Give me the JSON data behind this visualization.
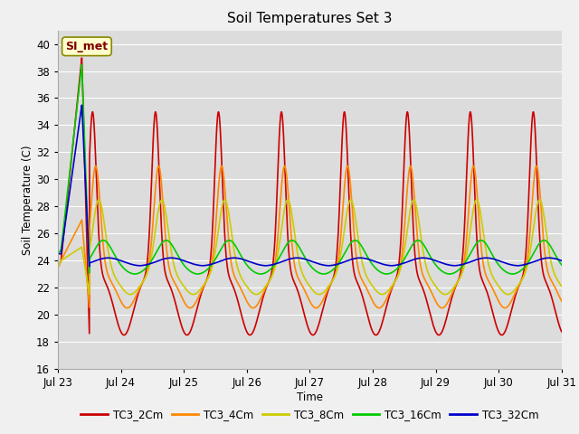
{
  "title": "Soil Temperatures Set 3",
  "xlabel": "Time",
  "ylabel": "Soil Temperature (C)",
  "ylim": [
    16,
    41
  ],
  "yticks": [
    16,
    18,
    20,
    22,
    24,
    26,
    28,
    30,
    32,
    34,
    36,
    38,
    40
  ],
  "xtick_positions": [
    0,
    1,
    2,
    3,
    4,
    5,
    6,
    7,
    8
  ],
  "xtick_labels": [
    "Jul 23",
    "Jul 24",
    "Jul 25",
    "Jul 26",
    "Jul 27",
    "Jul 28",
    "Jul 29",
    "Jul 30",
    "Jul 31"
  ],
  "series_colors": [
    "#cc0000",
    "#ff8800",
    "#cccc00",
    "#00cc00",
    "#0000cc"
  ],
  "series_labels": [
    "TC3_2Cm",
    "TC3_4Cm",
    "TC3_8Cm",
    "TC3_16Cm",
    "TC3_32Cm"
  ],
  "bg_color": "#dcdcdc",
  "fig_color": "#f0f0f0",
  "grid_color": "#ffffff",
  "annotation_text": "SI_met",
  "linewidth": 1.2
}
